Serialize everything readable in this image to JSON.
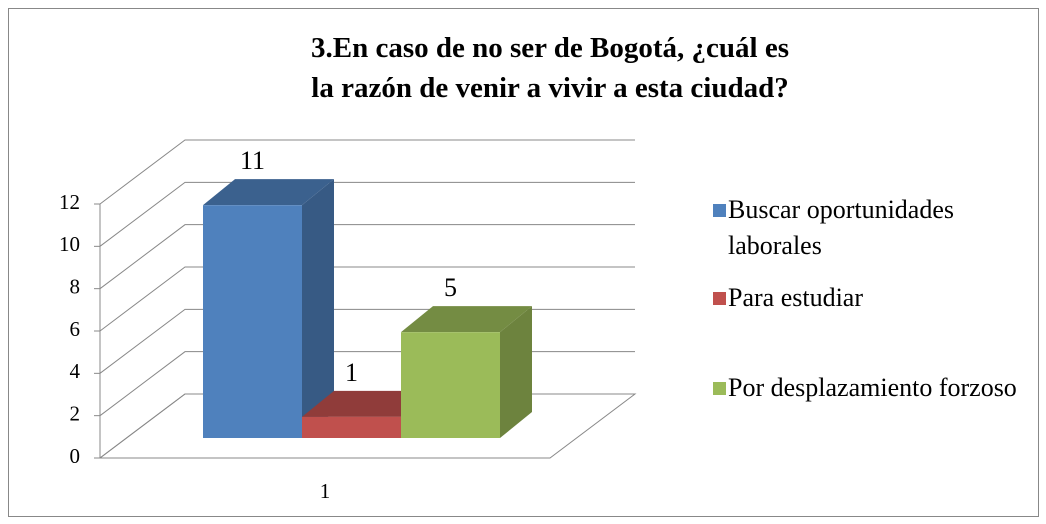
{
  "chart_data": {
    "type": "bar3d",
    "title": "3.En caso de no ser de Bogotá, ¿cuál es la razón de venir a vivir a esta ciudad?",
    "categories": [
      "1"
    ],
    "series": [
      {
        "name": "Buscar oportunidades laborales",
        "color": "#4f81bd",
        "values": [
          11
        ]
      },
      {
        "name": "Para estudiar",
        "color": "#c0504d",
        "values": [
          1
        ]
      },
      {
        "name": "Por desplazamiento forzoso",
        "color": "#9bbb59",
        "values": [
          5
        ]
      }
    ],
    "ylim": [
      0,
      12
    ],
    "yticks": [
      0,
      2,
      4,
      6,
      8,
      10,
      12
    ],
    "grid": true,
    "legend": "right"
  }
}
